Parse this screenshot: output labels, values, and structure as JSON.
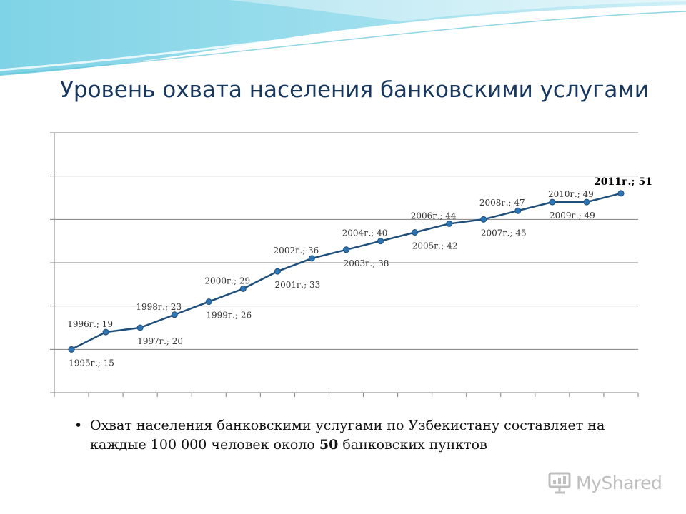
{
  "title": "Уровень охвата населения банковскими услугами",
  "bullet": {
    "text_before": "Охват населения банковскими услугами по Узбекистану составляет на каждые 100 000 человек около ",
    "bold_value": "50",
    "text_after": " банковских пунктов"
  },
  "watermark": {
    "text": "MyShared",
    "icon": "presentation-board-icon"
  },
  "colors": {
    "line": "#1f4e79",
    "marker": "#2e75b6",
    "title": "#17375e",
    "grid": "#808080"
  },
  "chart_data": {
    "type": "line",
    "x": [
      "1995г.",
      "1996г.",
      "1997г.",
      "1998г.",
      "1999г.",
      "2000г.",
      "2001г.",
      "2002г.",
      "2003г.",
      "2004г.",
      "2005г.",
      "2006г.",
      "2007г.",
      "2008г.",
      "2009г.",
      "2010г.",
      "2011г."
    ],
    "values": [
      15,
      19,
      20,
      23,
      26,
      29,
      33,
      36,
      38,
      40,
      42,
      44,
      45,
      47,
      49,
      49,
      51
    ],
    "data_labels": [
      "1995г.; 15",
      "1996г.; 19",
      "1997г.; 20",
      "1998г.; 23",
      "1999г.; 26",
      "2000г.; 29",
      "2001г.; 33",
      "2002г.; 36",
      "2003г.; 38",
      "2004г.; 40",
      "2005г.; 42",
      "2006г.; 44",
      "2007г.; 45",
      "2008г.; 47",
      "2009г.; 49",
      "2010г.; 49",
      "2011г.; 51"
    ],
    "highlight_label": "2011г.; 51",
    "title": "",
    "xlabel": "",
    "ylabel": "",
    "ylim": [
      5,
      65
    ],
    "grid": true,
    "axis_tick_labels": false,
    "legend": "none"
  }
}
